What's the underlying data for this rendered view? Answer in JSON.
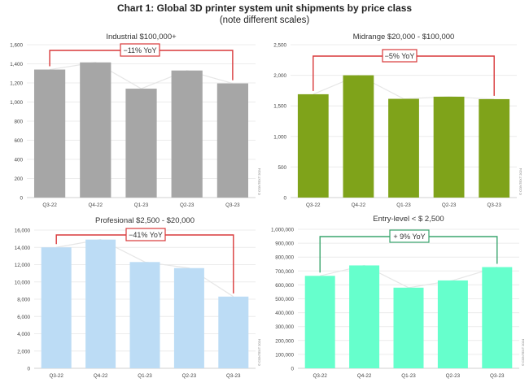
{
  "title": "Chart 1: Global 3D printer system unit shipments by price class",
  "subtitle": "(note different scales)",
  "copyright": "© CONTEXT 2024",
  "chart_data": [
    {
      "type": "bar",
      "title": "Industrial $100,000+",
      "categories": [
        "Q3-22",
        "Q4-22",
        "Q1-23",
        "Q2-23",
        "Q3-23"
      ],
      "values": [
        1340,
        1415,
        1140,
        1330,
        1195
      ],
      "ylim": [
        0,
        1600
      ],
      "yticks": [
        0,
        200,
        400,
        600,
        800,
        1000,
        1200,
        1400,
        1600
      ],
      "color": "#a6a6a6",
      "annotation": {
        "text": "−11% YoY",
        "color": "#d9383a"
      },
      "grid": true
    },
    {
      "type": "bar",
      "title": "Midrange $20,000 - $100,000",
      "categories": [
        "Q3-22",
        "Q4-22",
        "Q1-23",
        "Q2-23",
        "Q3-23"
      ],
      "values": [
        1690,
        2000,
        1615,
        1650,
        1610
      ],
      "ylim": [
        0,
        2500
      ],
      "yticks": [
        0,
        500,
        1000,
        1500,
        2000,
        2500
      ],
      "color": "#7fa31a",
      "annotation": {
        "text": "−5% YoY",
        "color": "#d9383a"
      },
      "grid": true
    },
    {
      "type": "bar",
      "title": "Profesional $2,500 - $20,000",
      "categories": [
        "Q3-22",
        "Q4-22",
        "Q1-23",
        "Q2-23",
        "Q3-23"
      ],
      "values": [
        14000,
        14900,
        12300,
        11600,
        8300
      ],
      "ylim": [
        0,
        16000
      ],
      "yticks": [
        0,
        2000,
        4000,
        6000,
        8000,
        10000,
        12000,
        14000,
        16000
      ],
      "color": "#bcdcf5",
      "annotation": {
        "text": "−41% YoY",
        "color": "#d9383a"
      },
      "grid": true
    },
    {
      "type": "bar",
      "title": "Entry-level < $ 2,500",
      "categories": [
        "Q3-22",
        "Q4-22",
        "Q1-23",
        "Q2-23",
        "Q3-23"
      ],
      "values": [
        665000,
        740000,
        580000,
        632000,
        728000
      ],
      "ylim": [
        0,
        1000000
      ],
      "yticks": [
        0,
        100000,
        200000,
        300000,
        400000,
        500000,
        600000,
        700000,
        800000,
        900000,
        1000000
      ],
      "color": "#66ffcc",
      "annotation": {
        "text": "+ 9% YoY",
        "color": "#3aa56e"
      },
      "grid": true
    }
  ]
}
